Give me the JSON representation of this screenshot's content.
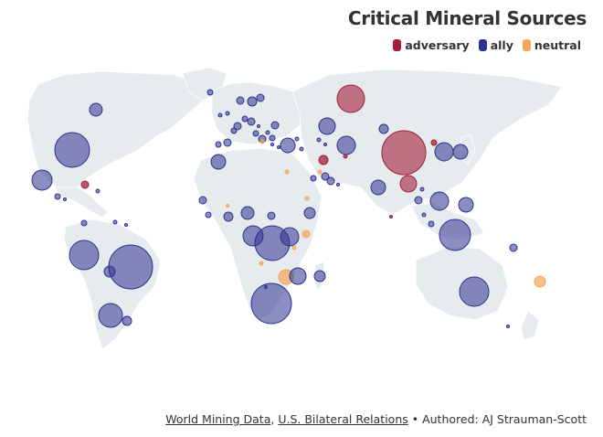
{
  "title": "Critical Mineral Sources",
  "legend": [
    {
      "label": "adversary",
      "color": "#a31f3a"
    },
    {
      "label": "ally",
      "color": "#2e318f"
    },
    {
      "label": "neutral",
      "color": "#f5a55a"
    }
  ],
  "footer": {
    "source1": "World Mining Data",
    "sep": ",",
    "source2": "U.S. Bilateral Relations",
    "credit": " • Authored: AJ Strauman-Scott"
  },
  "chart_data": {
    "type": "bubble-map",
    "categories": [
      "adversary",
      "ally",
      "neutral"
    ]
  }
}
